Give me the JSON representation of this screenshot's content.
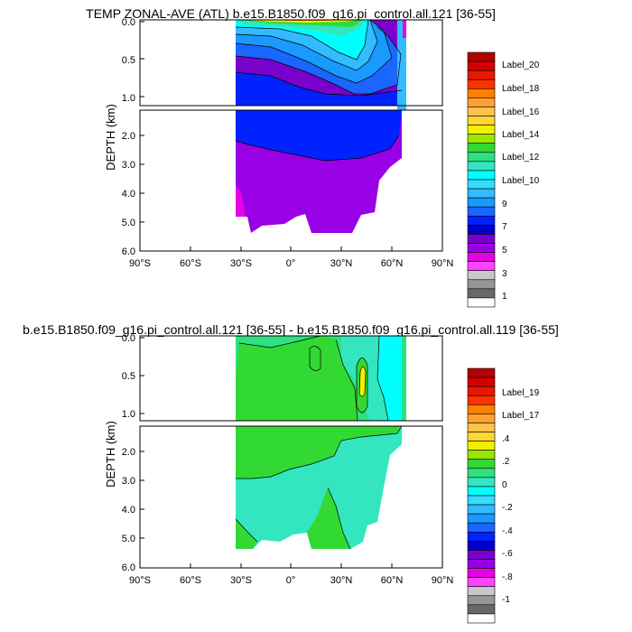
{
  "chart_data": [
    {
      "type": "heatmap",
      "title": "TEMP ZONAL-AVE (ATL) b.e15.B1850.f09_g16.pi_control.all.121 [36-55]",
      "ylabel": "DEPTH (km)",
      "x_ticks": [
        "90°S",
        "60°S",
        "30°S",
        "0°",
        "30°N",
        "60°N",
        "90°N"
      ],
      "xlim": [
        -90,
        90
      ],
      "upper_y_ticks": [
        "0.0",
        "0.5",
        "1.0"
      ],
      "upper_ylim": [
        0,
        1.1
      ],
      "lower_y_ticks": [
        "2.0",
        "3.0",
        "4.0",
        "5.0",
        "6.0"
      ],
      "lower_ylim": [
        1.1,
        6.0
      ],
      "colorbar_labels": [
        "Label_20",
        "Label_18",
        "Label_16",
        "Label_14",
        "Label_12",
        "Label_10",
        "9",
        "7",
        "5",
        "3",
        "1"
      ],
      "colorbar_colors": [
        "#b30000",
        "#d40000",
        "#e61a00",
        "#ff3300",
        "#ff8000",
        "#ffa033",
        "#ffc34d",
        "#ffd633",
        "#f0f000",
        "#99e600",
        "#33d933",
        "#2ee080",
        "#33e6c0",
        "#00ffff",
        "#33ddff",
        "#33bbff",
        "#1a99ff",
        "#1a66ff",
        "#0022ff",
        "#0000cc",
        "#7a00cc",
        "#9a00e6",
        "#e600e6",
        "#ff44ff",
        "#c8c8c8",
        "#969696",
        "#696969",
        "#ffffff"
      ]
    },
    {
      "type": "heatmap",
      "title": "b.e15.B1850.f09_g16.pi_control.all.121 [36-55] - b.e15.B1850.f09_g16.pi_control.all.119 [36-55]",
      "ylabel": "DEPTH (km)",
      "x_ticks": [
        "90°S",
        "60°S",
        "30°S",
        "0°",
        "30°N",
        "60°N",
        "90°N"
      ],
      "xlim": [
        -90,
        90
      ],
      "upper_y_ticks": [
        "0.0",
        "0.5",
        "1.0"
      ],
      "upper_ylim": [
        0,
        1.1
      ],
      "lower_y_ticks": [
        "2.0",
        "3.0",
        "4.0",
        "5.0",
        "6.0"
      ],
      "lower_ylim": [
        1.1,
        6.0
      ],
      "colorbar_labels": [
        "Label_19",
        "Label_17",
        ".4",
        ".2",
        "0",
        "-.2",
        "-.4",
        "-.6",
        "-.8",
        "-1"
      ],
      "colorbar_colors": [
        "#b30000",
        "#d40000",
        "#e61a00",
        "#ff3300",
        "#ff8000",
        "#ffa033",
        "#ffc34d",
        "#ffd633",
        "#f0f000",
        "#99e600",
        "#33d933",
        "#2ee080",
        "#33e6c0",
        "#00ffff",
        "#33ddff",
        "#33bbff",
        "#1a99ff",
        "#1a66ff",
        "#0022ff",
        "#0000cc",
        "#7a00cc",
        "#9a00e6",
        "#e600e6",
        "#ff44ff",
        "#c8c8c8",
        "#969696",
        "#696969",
        "#ffffff"
      ]
    }
  ]
}
